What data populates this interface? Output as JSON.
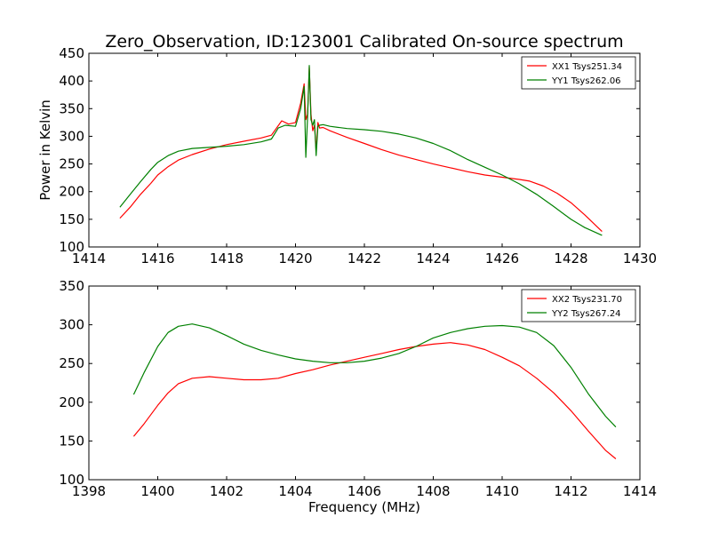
{
  "title": "Zero_Observation, ID:123001 Calibrated On-source spectrum",
  "chart_data": [
    {
      "type": "line",
      "ylabel": "Power in Kelvin",
      "xlabel": "",
      "xlim": [
        1414,
        1430
      ],
      "ylim": [
        100,
        450
      ],
      "xticks": [
        "1414",
        "1416",
        "1418",
        "1420",
        "1422",
        "1424",
        "1426",
        "1428",
        "1430"
      ],
      "yticks": [
        "100",
        "150",
        "200",
        "250",
        "300",
        "350",
        "400",
        "450"
      ],
      "legend_position": "top-right",
      "series": [
        {
          "name": "XX1 Tsys251.34",
          "color": "#ff0000",
          "x": [
            1414.9,
            1415.2,
            1415.5,
            1415.8,
            1416.0,
            1416.3,
            1416.6,
            1417.0,
            1417.5,
            1418.0,
            1418.5,
            1419.0,
            1419.3,
            1419.6,
            1419.8,
            1420.0,
            1420.15,
            1420.25,
            1420.3,
            1420.35,
            1420.4,
            1420.45,
            1420.5,
            1420.55,
            1420.6,
            1420.65,
            1420.7,
            1420.8,
            1421.0,
            1421.5,
            1422.0,
            1422.5,
            1423.0,
            1423.5,
            1424.0,
            1424.5,
            1425.0,
            1425.5,
            1426.0,
            1426.5,
            1426.8,
            1427.2,
            1427.6,
            1428.0,
            1428.4,
            1428.9
          ],
          "y": [
            152,
            172,
            195,
            215,
            230,
            245,
            257,
            267,
            277,
            285,
            291,
            297,
            302,
            328,
            322,
            325,
            360,
            395,
            330,
            340,
            425,
            340,
            310,
            320,
            275,
            325,
            315,
            316,
            310,
            298,
            287,
            276,
            266,
            258,
            250,
            243,
            236,
            230,
            226,
            222,
            219,
            210,
            197,
            180,
            158,
            128
          ]
        },
        {
          "name": "YY1 Tsys262.06",
          "color": "#008000",
          "x": [
            1414.9,
            1415.2,
            1415.5,
            1415.8,
            1416.0,
            1416.3,
            1416.6,
            1417.0,
            1417.5,
            1418.0,
            1418.5,
            1419.0,
            1419.3,
            1419.5,
            1419.7,
            1420.0,
            1420.15,
            1420.25,
            1420.3,
            1420.35,
            1420.4,
            1420.45,
            1420.5,
            1420.55,
            1420.6,
            1420.65,
            1420.7,
            1420.8,
            1421.0,
            1421.5,
            1422.0,
            1422.5,
            1423.0,
            1423.5,
            1424.0,
            1424.5,
            1425.0,
            1425.5,
            1426.0,
            1426.5,
            1427.0,
            1427.5,
            1428.0,
            1428.4,
            1428.9
          ],
          "y": [
            172,
            195,
            218,
            240,
            253,
            265,
            273,
            278,
            280,
            282,
            285,
            290,
            295,
            315,
            320,
            318,
            350,
            390,
            262,
            335,
            428,
            330,
            320,
            330,
            265,
            318,
            320,
            321,
            318,
            314,
            312,
            309,
            304,
            297,
            287,
            274,
            258,
            244,
            230,
            214,
            195,
            173,
            150,
            135,
            121
          ]
        }
      ]
    },
    {
      "type": "line",
      "ylabel": "",
      "xlabel": "Frequency (MHz)",
      "xlim": [
        1398,
        1414
      ],
      "ylim": [
        100,
        350
      ],
      "xticks": [
        "1398",
        "1400",
        "1402",
        "1404",
        "1406",
        "1408",
        "1410",
        "1412",
        "1414"
      ],
      "yticks": [
        "100",
        "150",
        "200",
        "250",
        "300",
        "350"
      ],
      "legend_position": "top-right",
      "series": [
        {
          "name": "XX2 Tsys231.70",
          "color": "#ff0000",
          "x": [
            1399.3,
            1399.6,
            1400.0,
            1400.3,
            1400.6,
            1401.0,
            1401.5,
            1402.0,
            1402.5,
            1403.0,
            1403.5,
            1404.0,
            1404.5,
            1405.0,
            1405.5,
            1406.0,
            1406.5,
            1407.0,
            1407.5,
            1408.0,
            1408.5,
            1409.0,
            1409.5,
            1410.0,
            1410.5,
            1411.0,
            1411.5,
            1412.0,
            1412.5,
            1413.0,
            1413.3
          ],
          "y": [
            156,
            172,
            196,
            212,
            224,
            231,
            233,
            231,
            229,
            229,
            231,
            237,
            242,
            248,
            253,
            258,
            263,
            268,
            272,
            275,
            277,
            274,
            268,
            258,
            247,
            231,
            212,
            189,
            163,
            138,
            127
          ]
        },
        {
          "name": "YY2 Tsys267.24",
          "color": "#008000",
          "x": [
            1399.3,
            1399.6,
            1400.0,
            1400.3,
            1400.6,
            1401.0,
            1401.5,
            1402.0,
            1402.5,
            1403.0,
            1403.5,
            1404.0,
            1404.5,
            1405.0,
            1405.5,
            1406.0,
            1406.5,
            1407.0,
            1407.5,
            1408.0,
            1408.5,
            1409.0,
            1409.5,
            1410.0,
            1410.5,
            1411.0,
            1411.5,
            1412.0,
            1412.5,
            1413.0,
            1413.3
          ],
          "y": [
            210,
            238,
            272,
            290,
            298,
            301,
            296,
            286,
            275,
            267,
            261,
            256,
            253,
            251,
            251,
            253,
            257,
            263,
            272,
            283,
            290,
            295,
            298,
            299,
            297,
            290,
            273,
            245,
            211,
            182,
            168
          ]
        }
      ]
    }
  ]
}
